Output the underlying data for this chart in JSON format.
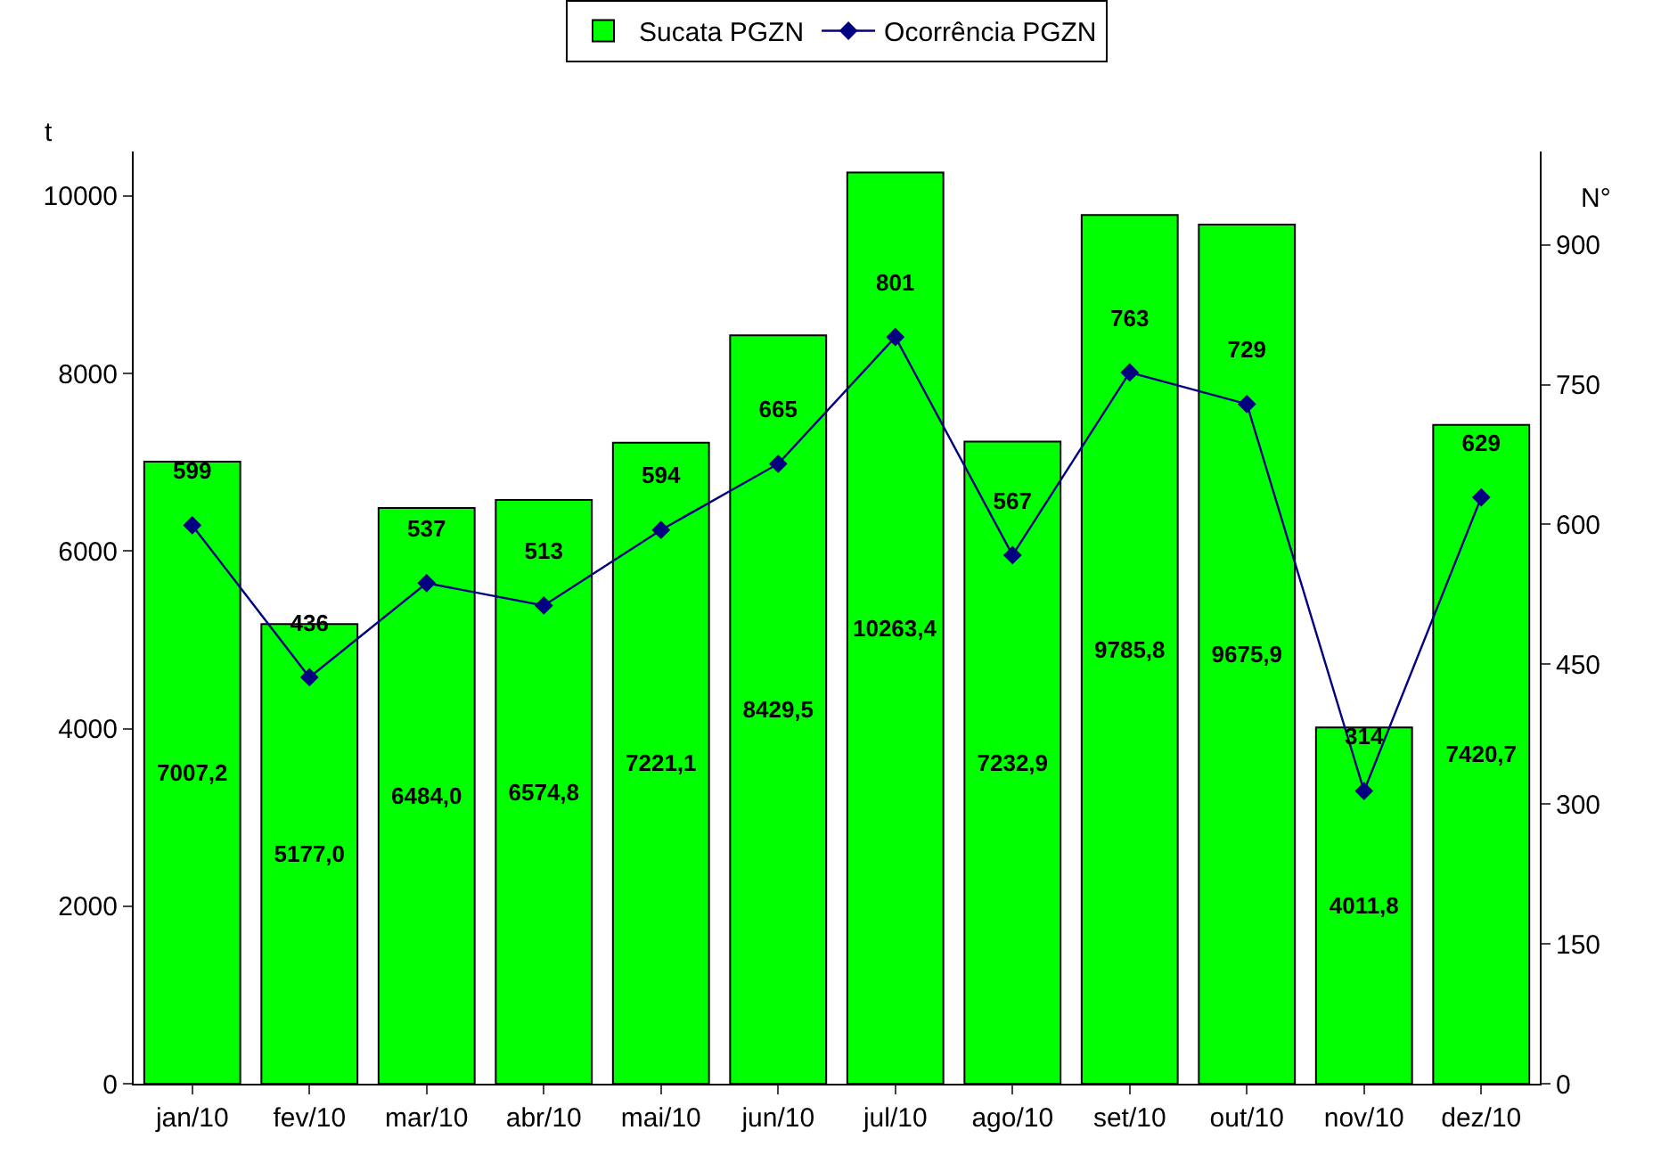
{
  "chart_data": {
    "type": "bar",
    "categories": [
      "jan/10",
      "fev/10",
      "mar/10",
      "abr/10",
      "mai/10",
      "jun/10",
      "jul/10",
      "ago/10",
      "set/10",
      "out/10",
      "nov/10",
      "dez/10"
    ],
    "series": [
      {
        "name": "Sucata PGZN",
        "color": "#00ff00",
        "values": [
          7007.2,
          5177.0,
          6484.0,
          6574.8,
          7221.1,
          8429.5,
          10263.4,
          7232.9,
          9785.8,
          9675.9,
          4011.8,
          7420.7
        ],
        "value_labels": [
          "7007,2",
          "5177,0",
          "6484,0",
          "6574,8",
          "7221,1",
          "8429,5",
          "10263,4",
          "7232,9",
          "9785,8",
          "9675,9",
          "4011,8",
          "7420,7"
        ]
      },
      {
        "name": "Ocorrência PGZN",
        "type": "line",
        "axis": "y2",
        "color": "#000080",
        "marker": "diamond",
        "values": [
          599,
          436,
          537,
          513,
          594,
          665,
          801,
          567,
          763,
          729,
          314,
          629
        ],
        "value_labels": [
          "599",
          "436",
          "537",
          "513",
          "594",
          "665",
          "801",
          "567",
          "763",
          "729",
          "314",
          "629"
        ]
      }
    ],
    "ylabel": "t",
    "y2label": "N°",
    "ylim": [
      0,
      10500
    ],
    "yticks": [
      0,
      2000,
      4000,
      6000,
      8000,
      10000
    ],
    "y2lim": [
      0,
      1000
    ],
    "y2ticks": [
      0,
      150,
      300,
      450,
      600,
      750,
      900
    ],
    "legend": "top",
    "grid": false
  }
}
